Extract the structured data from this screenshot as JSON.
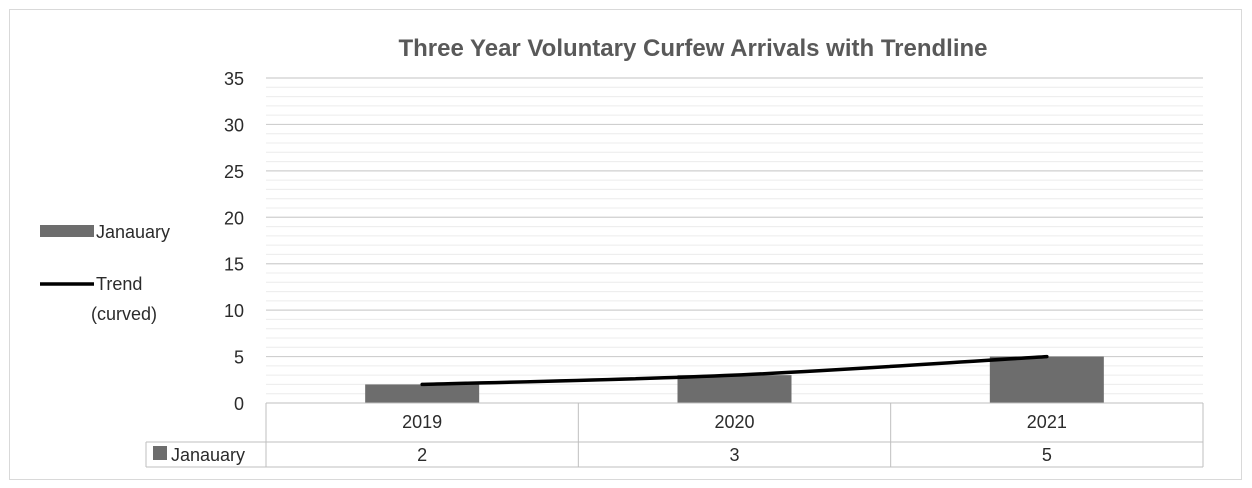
{
  "chart_data": {
    "type": "bar",
    "title": "Three Year Voluntary Curfew Arrivals with Trendline",
    "categories": [
      "2019",
      "2020",
      "2021"
    ],
    "series": [
      {
        "name": "Janauary",
        "values": [
          2,
          3,
          5
        ],
        "color": "#6d6d6d"
      }
    ],
    "trendline": {
      "name": "Trend (curved)",
      "name_lines": [
        "Trend",
        "(curved)"
      ],
      "values": [
        2,
        3,
        5
      ],
      "color": "#000000"
    },
    "ylim": [
      0,
      35
    ],
    "y_ticks": [
      "0",
      "5",
      "10",
      "15",
      "20",
      "25",
      "30",
      "35"
    ],
    "grid": true,
    "legend_position": "left",
    "data_table": {
      "row_label": "Janauary",
      "values": [
        "2",
        "3",
        "5"
      ]
    }
  }
}
